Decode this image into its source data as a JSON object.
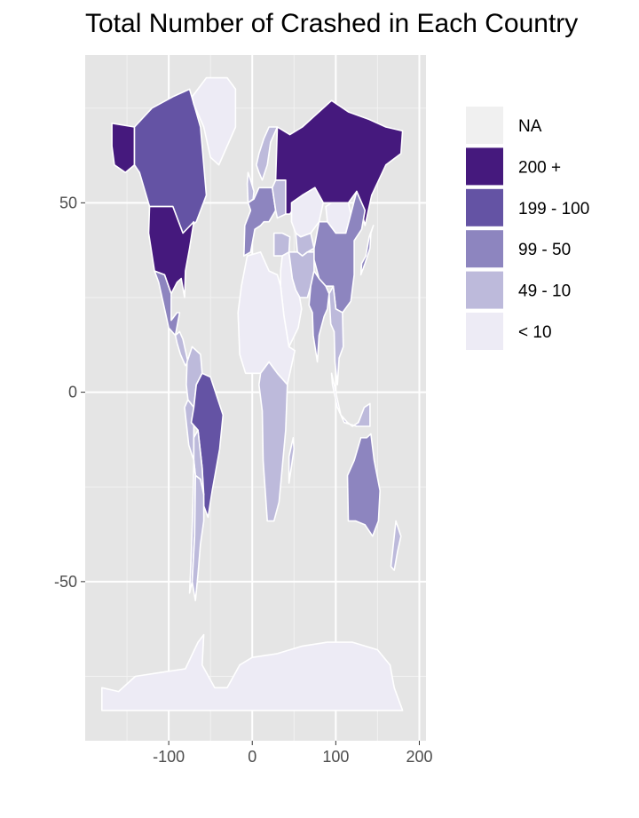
{
  "title": "Total Number of Crashed in Each Country",
  "chart_data": {
    "type": "choropleth",
    "title": "Total Number of Crashed in Each Country",
    "xlabel": "",
    "ylabel": "",
    "xlim": [
      -200,
      208
    ],
    "ylim": [
      -92,
      89
    ],
    "x_ticks": [
      -100,
      0,
      100,
      200
    ],
    "y_ticks": [
      50,
      0,
      -50
    ],
    "x_tick_labels": [
      "-100",
      "0",
      "100",
      "200"
    ],
    "y_tick_labels": [
      "50",
      "0",
      "-50"
    ],
    "grid": true,
    "legend_position": "right",
    "legend": [
      {
        "label": "NA",
        "color": "#f0f0f0"
      },
      {
        "label": "200 +",
        "color": "#45197d"
      },
      {
        "label": "199 - 100",
        "color": "#6453a4"
      },
      {
        "label": "99 - 50",
        "color": "#8d85bf"
      },
      {
        "label": "49 - 10",
        "color": "#bdbadb"
      },
      {
        "label": "< 10",
        "color": "#edebf5"
      }
    ]
  }
}
